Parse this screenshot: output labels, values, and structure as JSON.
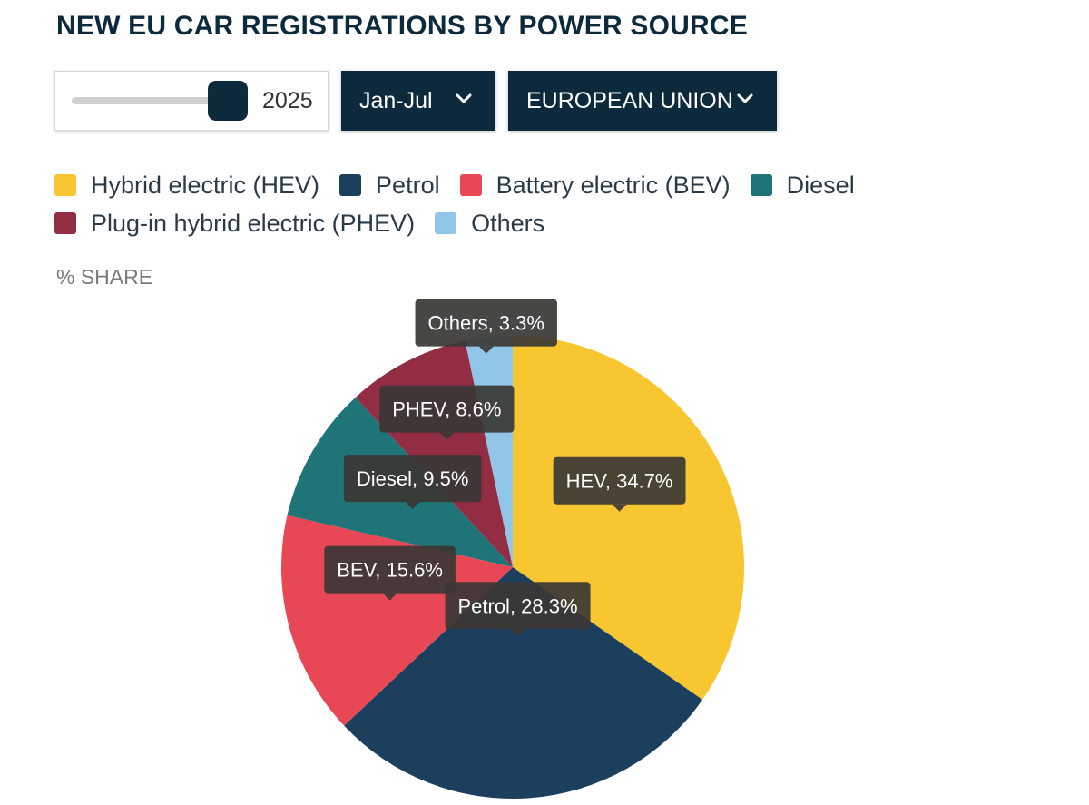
{
  "header": {
    "title": "NEW EU CAR REGISTRATIONS BY POWER SOURCE"
  },
  "controls": {
    "year": "2025",
    "year_slider_position": 1.0,
    "period": "Jan-Jul",
    "region": "EUROPEAN UNION"
  },
  "legend": [
    {
      "label": "Hybrid electric (HEV)",
      "color": "#f8c630"
    },
    {
      "label": "Petrol",
      "color": "#1c3f5e"
    },
    {
      "label": "Battery electric (BEV)",
      "color": "#e84856"
    },
    {
      "label": "Diesel",
      "color": "#1f7478"
    },
    {
      "label": "Plug-in hybrid electric (PHEV)",
      "color": "#922d43"
    },
    {
      "label": "Others",
      "color": "#92c6e8"
    }
  ],
  "unit_label": "% SHARE",
  "chart_data": {
    "type": "pie",
    "unit": "%",
    "slices": [
      {
        "short": "HEV",
        "name": "Hybrid electric (HEV)",
        "value": 34.7,
        "label": "HEV, 34.7%",
        "color": "#f8c630"
      },
      {
        "short": "Petrol",
        "name": "Petrol",
        "value": 28.3,
        "label": "Petrol, 28.3%",
        "color": "#1c3f5e"
      },
      {
        "short": "BEV",
        "name": "Battery electric (BEV)",
        "value": 15.6,
        "label": "BEV, 15.6%",
        "color": "#e84856"
      },
      {
        "short": "Diesel",
        "name": "Diesel",
        "value": 9.5,
        "label": "Diesel, 9.5%",
        "color": "#1f7478"
      },
      {
        "short": "PHEV",
        "name": "Plug-in hybrid electric (PHEV)",
        "value": 8.6,
        "label": "PHEV, 8.6%",
        "color": "#922d43"
      },
      {
        "short": "Others",
        "name": "Others",
        "value": 3.3,
        "label": "Others, 3.3%",
        "color": "#92c6e8"
      }
    ],
    "legend_position": "top-left"
  }
}
